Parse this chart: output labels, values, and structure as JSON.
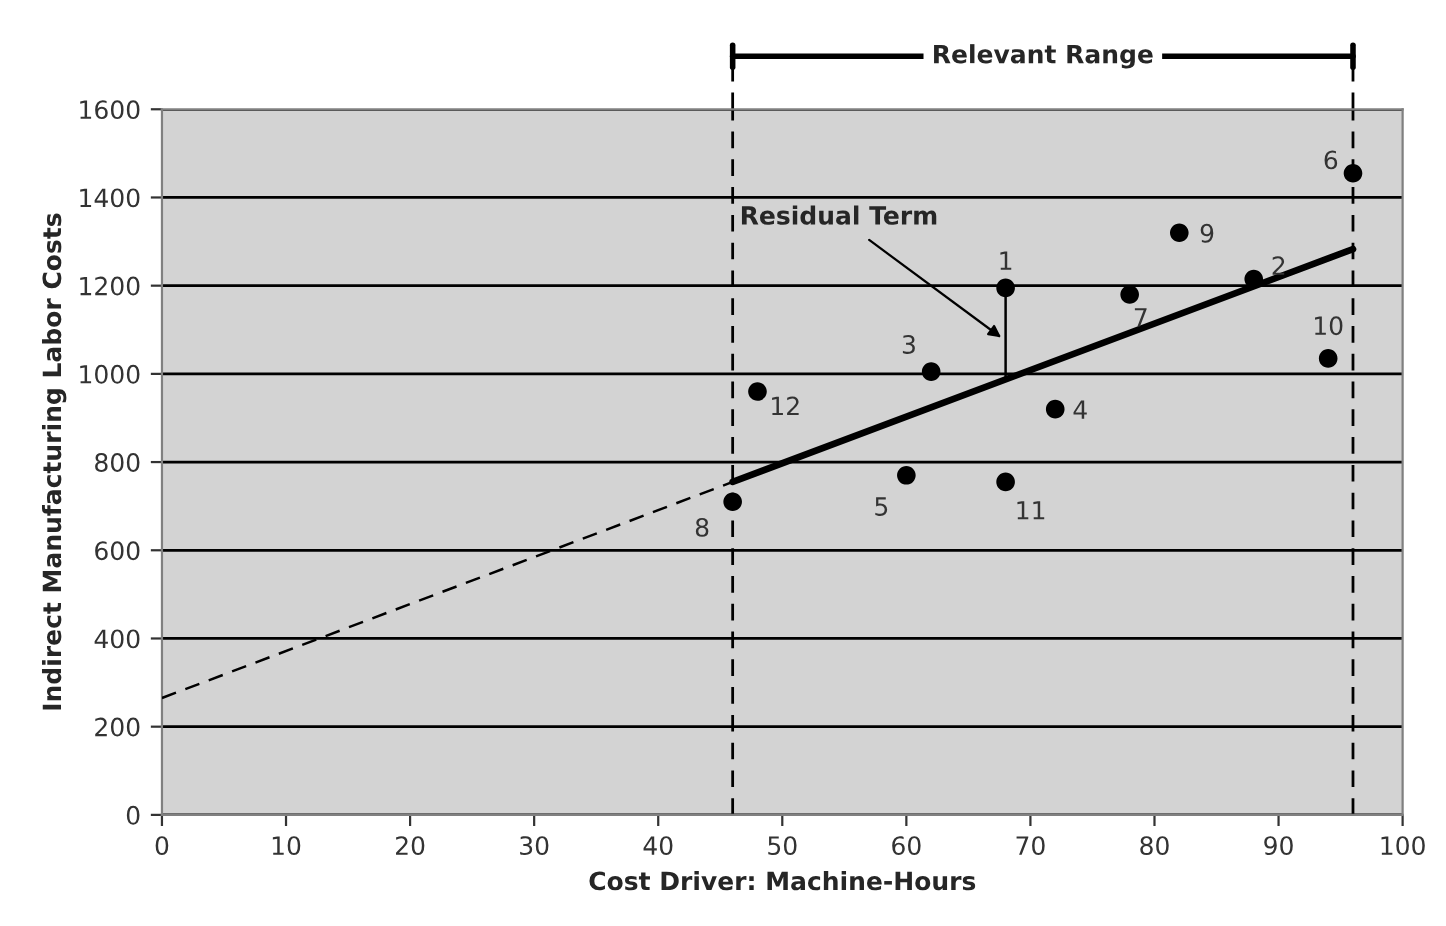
{
  "chart_data": {
    "type": "scatter",
    "xlabel": "Cost Driver: Machine-Hours",
    "ylabel": "Indirect Manufacturing Labor Costs",
    "xlim": [
      0,
      100
    ],
    "xticks": [
      0,
      10,
      20,
      30,
      40,
      50,
      60,
      70,
      80,
      90,
      100
    ],
    "ylim": [
      0,
      1600
    ],
    "yticks": [
      0,
      200,
      400,
      600,
      800,
      1000,
      1200,
      1400,
      1600
    ],
    "grid": "y",
    "series": [
      {
        "color": "#000000",
        "marker": "circle",
        "x": [
          68,
          88,
          62,
          72,
          60,
          96,
          78,
          46,
          82,
          94,
          68,
          48
        ],
        "values": [
          1195,
          1215,
          1005,
          920,
          770,
          1455,
          1180,
          710,
          1320,
          1035,
          755,
          960
        ]
      },
      {
        "type": "line",
        "color": "#000000",
        "line_style": "solid",
        "x": [
          46,
          96
        ],
        "values": [
          755,
          1283
        ]
      },
      {
        "type": "line",
        "color": "#000000",
        "line_style": "dashed",
        "x": [
          0,
          46
        ],
        "values": [
          265,
          755
        ]
      },
      {
        "type": "line",
        "color": "#000000",
        "line_style": "solid",
        "x": [
          68,
          68
        ],
        "values": [
          1195,
          991
        ]
      }
    ],
    "ref_lines": [
      {
        "axis": "x",
        "value": 46,
        "line_style": "dashed",
        "color": "#000000"
      },
      {
        "axis": "x",
        "value": 96,
        "line_style": "dashed",
        "color": "#000000"
      }
    ],
    "annotations": [
      {
        "text": "1",
        "x": 68,
        "y": 1195
      },
      {
        "text": "2",
        "x": 88,
        "y": 1215
      },
      {
        "text": "3",
        "x": 62,
        "y": 1005
      },
      {
        "text": "4",
        "x": 72,
        "y": 920
      },
      {
        "text": "5",
        "x": 60,
        "y": 770
      },
      {
        "text": "6",
        "x": 96,
        "y": 1455
      },
      {
        "text": "7",
        "x": 78,
        "y": 1180
      },
      {
        "text": "8",
        "x": 46,
        "y": 710
      },
      {
        "text": "9",
        "x": 82,
        "y": 1320
      },
      {
        "text": "10",
        "x": 94,
        "y": 1035
      },
      {
        "text": "11",
        "x": 68,
        "y": 755
      },
      {
        "text": "12",
        "x": 48,
        "y": 960
      },
      {
        "text": "Residual Term",
        "x": 68,
        "y": 1075
      },
      "Relevant Range"
    ]
  }
}
